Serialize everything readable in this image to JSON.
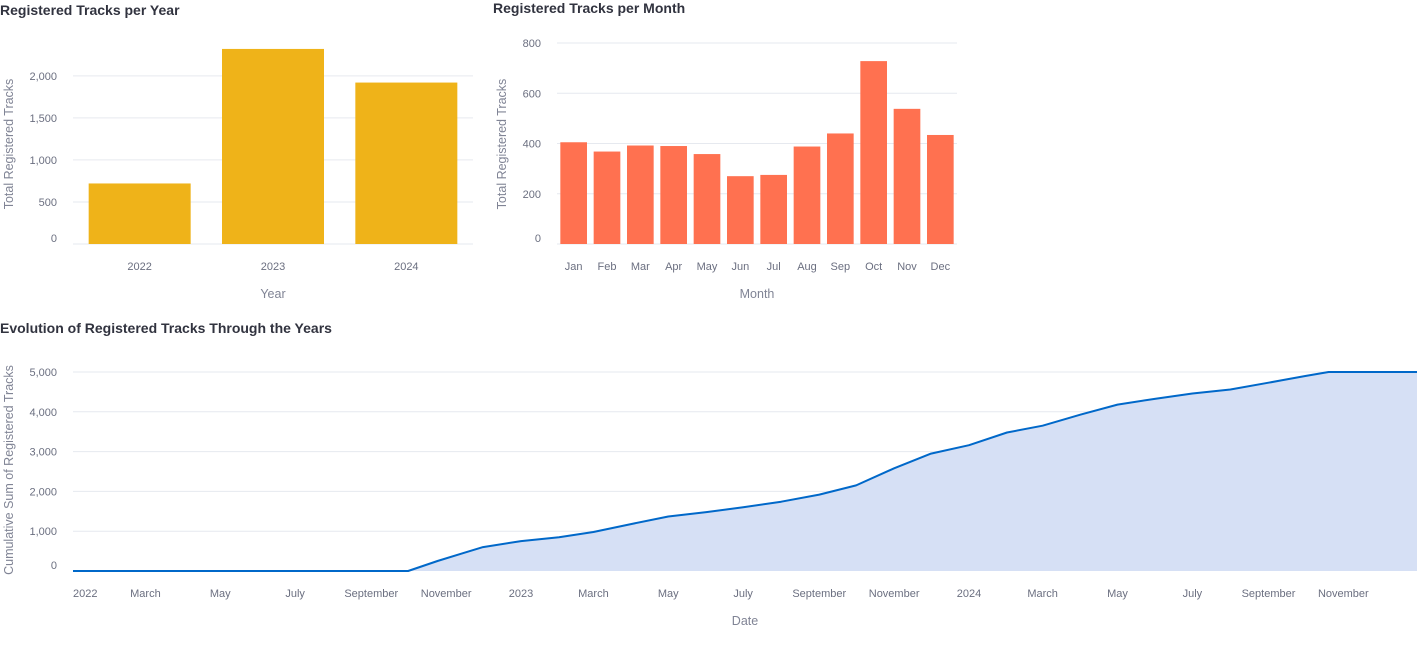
{
  "chart_data": [
    {
      "type": "bar",
      "title": "Registered Tracks per Year",
      "xlabel": "Year",
      "ylabel": "Total Registered Tracks",
      "categories": [
        "2022",
        "2023",
        "2024"
      ],
      "values": [
        720,
        2320,
        1920
      ],
      "ylim": [
        0,
        2450
      ],
      "yticks": [
        0,
        500,
        1000,
        1500,
        2000
      ],
      "ytick_labels": [
        "0",
        "500",
        "1,000",
        "1,500",
        "2,000"
      ],
      "grid": true,
      "color": "#efb319"
    },
    {
      "type": "bar",
      "title": "Registered Tracks per Month",
      "xlabel": "Month",
      "ylabel": "Total Registered Tracks",
      "categories": [
        "Jan",
        "Feb",
        "Mar",
        "Apr",
        "May",
        "Jun",
        "Jul",
        "Aug",
        "Sep",
        "Oct",
        "Nov",
        "Dec"
      ],
      "values": [
        405,
        368,
        392,
        390,
        358,
        270,
        275,
        388,
        440,
        728,
        538,
        434
      ],
      "ylim": [
        0,
        820
      ],
      "yticks": [
        0,
        200,
        400,
        600,
        800
      ],
      "ytick_labels": [
        "0",
        "200",
        "400",
        "600",
        "800"
      ],
      "grid": true,
      "color": "#ff7150"
    },
    {
      "type": "area",
      "title": "Evolution of Registered Tracks Through the Years",
      "xlabel": "Date",
      "ylabel": "Cumulative Sum of Registered Tracks",
      "xlim": [
        "2022-01-01",
        "2024-12-31"
      ],
      "ylim": [
        0,
        5000
      ],
      "yticks": [
        0,
        1000,
        2000,
        3000,
        4000,
        5000
      ],
      "ytick_labels": [
        "0",
        "1,000",
        "2,000",
        "3,000",
        "4,000",
        "5,000"
      ],
      "xtick_dates": [
        "2022-01-01",
        "2022-03-01",
        "2022-05-01",
        "2022-07-01",
        "2022-09-01",
        "2022-11-01",
        "2023-01-01",
        "2023-03-01",
        "2023-05-01",
        "2023-07-01",
        "2023-09-01",
        "2023-11-01",
        "2024-01-01",
        "2024-03-01",
        "2024-05-01",
        "2024-07-01",
        "2024-09-01",
        "2024-11-01"
      ],
      "xtick_labels": [
        "2022",
        "March",
        "May",
        "July",
        "September",
        "November",
        "2023",
        "March",
        "May",
        "July",
        "September",
        "November",
        "2024",
        "March",
        "May",
        "July",
        "September",
        "November"
      ],
      "x": [
        "2022-01-01",
        "2022-10-01",
        "2022-10-25",
        "2022-11-15",
        "2022-12-01",
        "2023-01-01",
        "2023-02-01",
        "2023-03-01",
        "2023-04-01",
        "2023-05-01",
        "2023-06-01",
        "2023-07-01",
        "2023-08-01",
        "2023-09-01",
        "2023-10-01",
        "2023-11-01",
        "2023-12-01",
        "2024-01-01",
        "2024-02-01",
        "2024-03-01",
        "2024-04-01",
        "2024-05-01",
        "2024-06-01",
        "2024-07-01",
        "2024-08-01",
        "2024-09-01",
        "2024-10-01",
        "2024-10-20",
        "2024-12-31"
      ],
      "y": [
        0,
        0,
        250,
        450,
        600,
        750,
        850,
        980,
        1180,
        1370,
        1480,
        1600,
        1740,
        1920,
        2150,
        2580,
        2950,
        3160,
        3480,
        3650,
        3930,
        4180,
        4330,
        4460,
        4560,
        4730,
        4900,
        5000,
        5000
      ],
      "grid": true,
      "line_color": "#0068c9",
      "fill_color": "#d6e0f5"
    }
  ]
}
